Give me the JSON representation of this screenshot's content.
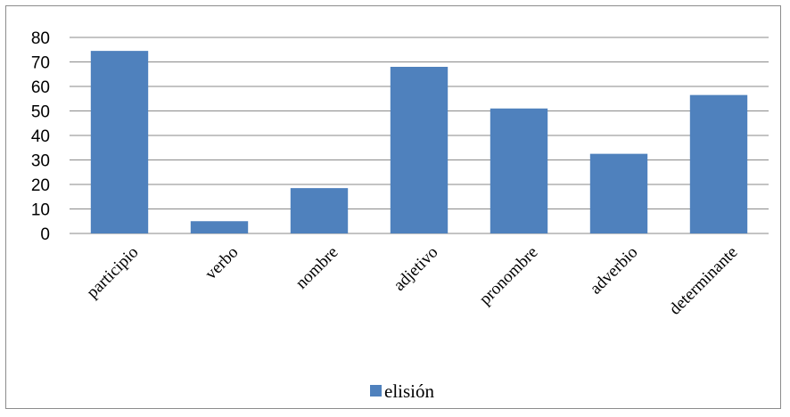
{
  "chart_data": {
    "type": "bar",
    "title": "",
    "xlabel": "",
    "ylabel": "",
    "categories": [
      "participio",
      "verbo",
      "nombre",
      "adjetivo",
      "pronombre",
      "adverbio",
      "determinante"
    ],
    "series": [
      {
        "name": "elisión",
        "color": "#4f81bd",
        "values": [
          74.5,
          5,
          18.5,
          68,
          51,
          32.5,
          56.5
        ]
      }
    ],
    "ylim": [
      0,
      80
    ],
    "yticks": [
      "0",
      "10",
      "20",
      "30",
      "40",
      "50",
      "60",
      "70",
      "80"
    ],
    "grid": true,
    "legend_position": "bottom"
  }
}
